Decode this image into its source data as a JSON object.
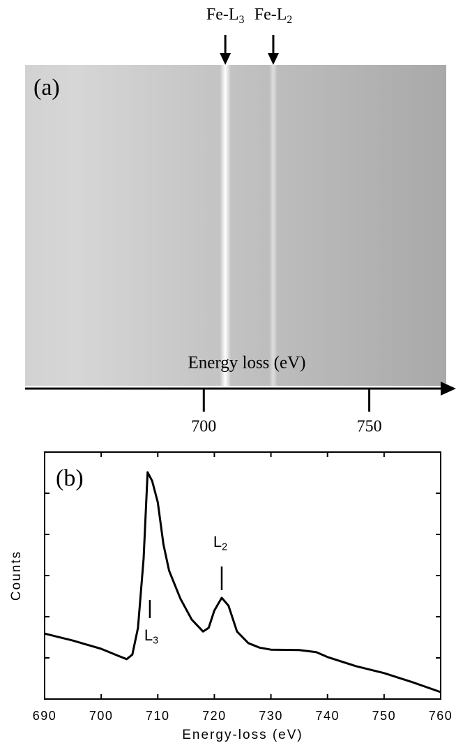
{
  "chart_data": [
    {
      "type": "spectrum-image",
      "label": "(a)",
      "xlabel": "Energy loss (eV)",
      "xlim": [
        646,
        772
      ],
      "xticks": [
        700,
        750
      ],
      "annotations": [
        {
          "text": "Fe-L",
          "sub": "3",
          "x": 706.5
        },
        {
          "text": "Fe-L",
          "sub": "2",
          "x": 721
        }
      ]
    },
    {
      "type": "line",
      "label": "(b)",
      "xlabel": "Energy-loss (eV)",
      "ylabel": "Counts",
      "x": [
        690,
        695,
        700,
        703,
        704.5,
        705.5,
        706.5,
        707.5,
        708.2,
        709,
        710,
        711,
        712,
        714,
        716,
        718,
        719,
        720,
        721.3,
        722.5,
        724,
        726,
        728,
        730,
        735,
        738,
        740,
        745,
        750,
        755,
        760
      ],
      "series": [
        {
          "color": "#000000",
          "values": [
            1.59,
            1.42,
            1.22,
            1.05,
            0.97,
            1.08,
            1.73,
            3.42,
            5.51,
            5.3,
            4.78,
            3.76,
            3.12,
            2.44,
            1.93,
            1.64,
            1.73,
            2.15,
            2.46,
            2.27,
            1.64,
            1.36,
            1.25,
            1.2,
            1.19,
            1.14,
            1.02,
            0.8,
            0.63,
            0.41,
            0.17
          ]
        }
      ],
      "xlim": [
        690,
        760
      ],
      "xticks": [
        690,
        700,
        710,
        720,
        730,
        740,
        750,
        760
      ],
      "ylim": [
        0,
        6
      ],
      "yticks": [
        1,
        2,
        3,
        4,
        5
      ],
      "show_ytick_labels": false,
      "annotations": [
        {
          "text": "L",
          "sub": "3",
          "x": 708.6,
          "position": "below"
        },
        {
          "text": "L",
          "sub": "2",
          "x": 721.3,
          "position": "above"
        }
      ]
    }
  ]
}
